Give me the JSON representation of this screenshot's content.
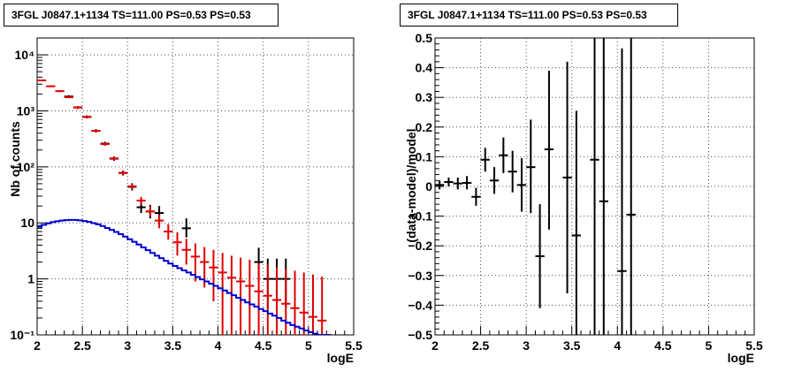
{
  "colors": {
    "data": "#000000",
    "model_points": "#e00000",
    "model_curve": "#0000cc",
    "frame": "#000000",
    "grid": "#000000"
  },
  "chart_data": [
    {
      "type": "line",
      "title": "3FGL J0847.1+1134 TS=111.00 PS=0.53 PS=0.53",
      "xlabel": "logE",
      "ylabel": "Nb of counts",
      "xlim": [
        2,
        5.5
      ],
      "ylim": [
        0.1,
        20000
      ],
      "y_scale": "log",
      "grid": true,
      "x_ticks": [
        2,
        2.5,
        3,
        3.5,
        4,
        4.5,
        5,
        5.5
      ],
      "x_tick_labels": [
        "2",
        "2.5",
        "3",
        "3.5",
        "4",
        "4.5",
        "5",
        "5.5"
      ],
      "y_ticks": [
        0.1,
        1,
        10,
        100,
        1000,
        10000
      ],
      "y_tick_labels": [
        "10⁻¹",
        "1",
        "10",
        "10²",
        "10³",
        "10⁴"
      ],
      "series": [
        {
          "style": "black error bars",
          "points": [
            {
              "x": 2.35,
              "y": 1800,
              "lo": 1700,
              "hi": 1900
            },
            {
              "x": 2.45,
              "y": 1150,
              "lo": 1080,
              "hi": 1220
            },
            {
              "x": 2.55,
              "y": 780,
              "lo": 730,
              "hi": 830
            },
            {
              "x": 2.65,
              "y": 440,
              "lo": 410,
              "hi": 470
            },
            {
              "x": 2.75,
              "y": 260,
              "lo": 240,
              "hi": 280
            },
            {
              "x": 2.85,
              "y": 140,
              "lo": 128,
              "hi": 152
            },
            {
              "x": 2.95,
              "y": 78,
              "lo": 70,
              "hi": 86
            },
            {
              "x": 3.05,
              "y": 44,
              "lo": 38,
              "hi": 51
            },
            {
              "x": 3.15,
              "y": 19,
              "lo": 15,
              "hi": 24
            },
            {
              "x": 3.25,
              "y": 16,
              "lo": 12,
              "hi": 21
            },
            {
              "x": 3.35,
              "y": 15,
              "lo": 11,
              "hi": 20
            },
            {
              "x": 3.65,
              "y": 8,
              "lo": 5.5,
              "hi": 12
            },
            {
              "x": 4.45,
              "y": 2,
              "lo": 0.9,
              "hi": 3.6
            },
            {
              "x": 4.55,
              "y": 1,
              "lo": 0.3,
              "hi": 2.3
            },
            {
              "x": 4.65,
              "y": 1,
              "lo": 0.3,
              "hi": 2.3
            },
            {
              "x": 4.75,
              "y": 1,
              "lo": 0.3,
              "hi": 2.3
            }
          ]
        },
        {
          "style": "red error bars",
          "points": [
            {
              "x": 2.05,
              "y": 3500,
              "lo": 3380,
              "hi": 3620
            },
            {
              "x": 2.15,
              "y": 2750,
              "lo": 2650,
              "hi": 2850
            },
            {
              "x": 2.25,
              "y": 2250,
              "lo": 2160,
              "hi": 2340
            },
            {
              "x": 2.35,
              "y": 1750,
              "lo": 1680,
              "hi": 1820
            },
            {
              "x": 2.45,
              "y": 1150,
              "lo": 1090,
              "hi": 1210
            },
            {
              "x": 2.55,
              "y": 780,
              "lo": 735,
              "hi": 825
            },
            {
              "x": 2.65,
              "y": 440,
              "lo": 415,
              "hi": 465
            },
            {
              "x": 2.75,
              "y": 255,
              "lo": 238,
              "hi": 272
            },
            {
              "x": 2.85,
              "y": 142,
              "lo": 130,
              "hi": 154
            },
            {
              "x": 2.95,
              "y": 78,
              "lo": 71,
              "hi": 85
            },
            {
              "x": 3.05,
              "y": 45,
              "lo": 40,
              "hi": 50
            },
            {
              "x": 3.15,
              "y": 25,
              "lo": 21,
              "hi": 29
            },
            {
              "x": 3.25,
              "y": 16,
              "lo": 13,
              "hi": 20
            },
            {
              "x": 3.35,
              "y": 11,
              "lo": 8,
              "hi": 14
            },
            {
              "x": 3.45,
              "y": 7,
              "lo": 5,
              "hi": 9.5
            },
            {
              "x": 3.55,
              "y": 4.5,
              "lo": 2.6,
              "hi": 6.8
            },
            {
              "x": 3.65,
              "y": 3.3,
              "lo": 1.8,
              "hi": 5.2
            },
            {
              "x": 3.75,
              "y": 2.5,
              "lo": 0.9,
              "hi": 4.3
            },
            {
              "x": 3.85,
              "y": 2.0,
              "lo": 0.7,
              "hi": 3.7
            },
            {
              "x": 3.95,
              "y": 1.6,
              "lo": 0.4,
              "hi": 3.3
            },
            {
              "x": 4.05,
              "y": 1.3,
              "lo": 0.1,
              "hi": 2.9
            },
            {
              "x": 4.15,
              "y": 1.05,
              "lo": 0.1,
              "hi": 2.6
            },
            {
              "x": 4.25,
              "y": 0.9,
              "lo": 0.1,
              "hi": 2.4
            },
            {
              "x": 4.35,
              "y": 0.75,
              "lo": 0.1,
              "hi": 2.2
            },
            {
              "x": 4.45,
              "y": 0.6,
              "lo": 0.1,
              "hi": 1.9
            },
            {
              "x": 4.55,
              "y": 0.5,
              "lo": 0.1,
              "hi": 1.8
            },
            {
              "x": 4.65,
              "y": 0.42,
              "lo": 0.1,
              "hi": 1.6
            },
            {
              "x": 4.75,
              "y": 0.36,
              "lo": 0.1,
              "hi": 1.5
            },
            {
              "x": 4.85,
              "y": 0.3,
              "lo": 0.1,
              "hi": 1.4
            },
            {
              "x": 4.95,
              "y": 0.25,
              "lo": 0.1,
              "hi": 1.3
            },
            {
              "x": 5.05,
              "y": 0.21,
              "lo": 0.1,
              "hi": 1.2
            },
            {
              "x": 5.15,
              "y": 0.18,
              "lo": 0.1,
              "hi": 1.1
            }
          ]
        },
        {
          "style": "blue step curve",
          "x": [
            2.0,
            2.05,
            2.1,
            2.15,
            2.2,
            2.25,
            2.3,
            2.35,
            2.4,
            2.45,
            2.5,
            2.55,
            2.6,
            2.65,
            2.7,
            2.75,
            2.8,
            2.85,
            2.9,
            2.95,
            3.0,
            3.05,
            3.1,
            3.15,
            3.2,
            3.25,
            3.3,
            3.35,
            3.4,
            3.45,
            3.5,
            3.55,
            3.6,
            3.65,
            3.7,
            3.75,
            3.8,
            3.85,
            3.9,
            3.95,
            4.0,
            4.05,
            4.1,
            4.15,
            4.2,
            4.25,
            4.3,
            4.35,
            4.4,
            4.45,
            4.5,
            4.55,
            4.6,
            4.65,
            4.7,
            4.75,
            4.8,
            4.85,
            4.9,
            4.95,
            5.0,
            5.05,
            5.1,
            5.15,
            5.2
          ],
          "y": [
            8.5,
            9.2,
            9.8,
            10.3,
            10.7,
            11,
            11.2,
            11.3,
            11.3,
            11.1,
            10.8,
            10.4,
            9.9,
            9.4,
            8.8,
            8.1,
            7.5,
            6.9,
            6.3,
            5.7,
            5.1,
            4.6,
            4.1,
            3.65,
            3.25,
            2.9,
            2.6,
            2.35,
            2.1,
            1.88,
            1.7,
            1.55,
            1.42,
            1.3,
            1.18,
            1.08,
            0.98,
            0.9,
            0.82,
            0.75,
            0.68,
            0.62,
            0.56,
            0.51,
            0.46,
            0.42,
            0.38,
            0.35,
            0.32,
            0.29,
            0.265,
            0.24,
            0.22,
            0.2,
            0.18,
            0.165,
            0.15,
            0.14,
            0.13,
            0.12,
            0.112,
            0.105,
            0.1,
            0.1,
            0.1
          ]
        }
      ]
    },
    {
      "type": "scatter",
      "title": "3FGL J0847.1+1134 TS=111.00 PS=0.53 PS=0.53",
      "xlabel": "logE",
      "ylabel": "(data-model)/model",
      "xlim": [
        2,
        5.5
      ],
      "ylim": [
        -0.5,
        0.5
      ],
      "grid": true,
      "x_ticks": [
        2,
        2.5,
        3,
        3.5,
        4,
        4.5,
        5,
        5.5
      ],
      "x_tick_labels": [
        "2",
        "2.5",
        "3",
        "3.5",
        "4",
        "4.5",
        "5",
        "5.5"
      ],
      "y_ticks": [
        -0.5,
        -0.4,
        -0.3,
        -0.2,
        -0.1,
        0,
        0.1,
        0.2,
        0.3,
        0.4,
        0.5
      ],
      "y_tick_labels": [
        "−0.5",
        "−0.4",
        "−0.3",
        "−0.2",
        "−0.1",
        "0",
        "0.1",
        "0.2",
        "0.3",
        "0.4",
        "0.5"
      ],
      "series": [
        {
          "style": "black error bars",
          "points": [
            {
              "x": 2.05,
              "y": 0.005,
              "lo": -0.01,
              "hi": 0.02
            },
            {
              "x": 2.15,
              "y": 0.015,
              "lo": 0.0,
              "hi": 0.03
            },
            {
              "x": 2.25,
              "y": 0.01,
              "lo": -0.01,
              "hi": 0.03
            },
            {
              "x": 2.35,
              "y": 0.012,
              "lo": -0.01,
              "hi": 0.035
            },
            {
              "x": 2.45,
              "y": -0.035,
              "lo": -0.065,
              "hi": -0.005
            },
            {
              "x": 2.55,
              "y": 0.09,
              "lo": 0.05,
              "hi": 0.13
            },
            {
              "x": 2.65,
              "y": 0.02,
              "lo": -0.025,
              "hi": 0.065
            },
            {
              "x": 2.75,
              "y": 0.105,
              "lo": 0.045,
              "hi": 0.165
            },
            {
              "x": 2.85,
              "y": 0.05,
              "lo": -0.02,
              "hi": 0.12
            },
            {
              "x": 2.95,
              "y": 0.005,
              "lo": -0.085,
              "hi": 0.095
            },
            {
              "x": 3.05,
              "y": 0.065,
              "lo": -0.09,
              "hi": 0.225
            },
            {
              "x": 3.15,
              "y": -0.235,
              "lo": -0.41,
              "hi": -0.06
            },
            {
              "x": 3.25,
              "y": 0.125,
              "lo": -0.145,
              "hi": 0.39
            },
            {
              "x": 3.45,
              "y": 0.03,
              "lo": -0.36,
              "hi": 0.42
            },
            {
              "x": 3.55,
              "y": -0.165,
              "lo": -0.5,
              "hi": 0.255
            },
            {
              "x": 3.75,
              "y": 0.09,
              "lo": -0.5,
              "hi": 0.5
            },
            {
              "x": 3.85,
              "y": -0.05,
              "lo": -0.5,
              "hi": 0.5
            },
            {
              "x": 4.05,
              "y": -0.285,
              "lo": -0.5,
              "hi": 0.465
            },
            {
              "x": 4.15,
              "y": -0.095,
              "lo": -0.5,
              "hi": 0.5
            }
          ]
        }
      ]
    }
  ]
}
